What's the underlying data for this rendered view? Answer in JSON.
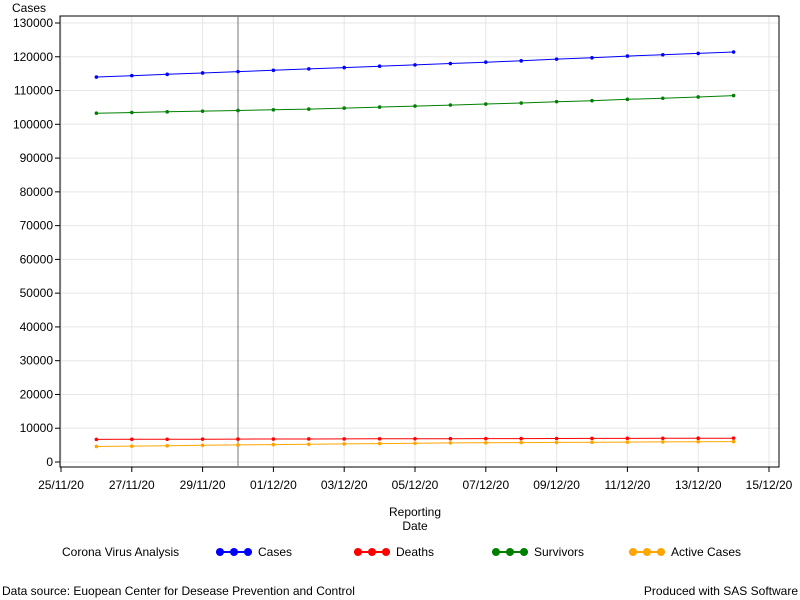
{
  "chart_data": {
    "type": "line",
    "ylabel": "Cases",
    "xlabel_lines": [
      "Reporting",
      "Date"
    ],
    "ylim": [
      0,
      130000
    ],
    "yticks": [
      0,
      10000,
      20000,
      30000,
      40000,
      50000,
      60000,
      70000,
      80000,
      90000,
      100000,
      110000,
      120000,
      130000
    ],
    "xlim": [
      "2020-11-25",
      "2020-12-15"
    ],
    "xticks": [
      "25/11/20",
      "27/11/20",
      "29/11/20",
      "01/12/20",
      "03/12/20",
      "05/12/20",
      "07/12/20",
      "09/12/20",
      "11/12/20",
      "13/12/20",
      "15/12/20"
    ],
    "reference_line_date": "2020-11-30",
    "grid": true,
    "x": [
      "2020-11-26",
      "2020-11-27",
      "2020-11-28",
      "2020-11-29",
      "2020-11-30",
      "2020-12-01",
      "2020-12-02",
      "2020-12-03",
      "2020-12-04",
      "2020-12-05",
      "2020-12-06",
      "2020-12-07",
      "2020-12-08",
      "2020-12-09",
      "2020-12-10",
      "2020-12-11",
      "2020-12-12",
      "2020-12-13",
      "2020-12-14"
    ],
    "series": [
      {
        "name": "Cases",
        "color": "#0000ff",
        "values": [
          114000,
          114400,
          114800,
          115200,
          115600,
          116000,
          116400,
          116800,
          117200,
          117600,
          118000,
          118400,
          118800,
          119300,
          119700,
          120200,
          120600,
          121000,
          121400
        ]
      },
      {
        "name": "Deaths",
        "color": "#ff0000",
        "values": [
          6700,
          6720,
          6740,
          6760,
          6780,
          6800,
          6820,
          6840,
          6860,
          6880,
          6900,
          6920,
          6940,
          6960,
          6980,
          7000,
          7020,
          7040,
          7060
        ]
      },
      {
        "name": "Survivors",
        "color": "#008000",
        "values": [
          103300,
          103500,
          103700,
          103900,
          104100,
          104300,
          104500,
          104800,
          105100,
          105400,
          105700,
          106000,
          106300,
          106700,
          107000,
          107400,
          107700,
          108100,
          108500
        ]
      },
      {
        "name": "Active Cases",
        "color": "#ffa500",
        "values": [
          4600,
          4700,
          4800,
          4950,
          5050,
          5150,
          5250,
          5350,
          5450,
          5550,
          5650,
          5700,
          5750,
          5800,
          5850,
          5900,
          5950,
          6000,
          6050
        ]
      }
    ],
    "legend": {
      "title": "Corona Virus Analysis",
      "placement": "bottom"
    }
  },
  "footer": {
    "source": "Data source: Euopean Center for Desease Prevention and Control",
    "produced": "Produced with SAS Software"
  }
}
